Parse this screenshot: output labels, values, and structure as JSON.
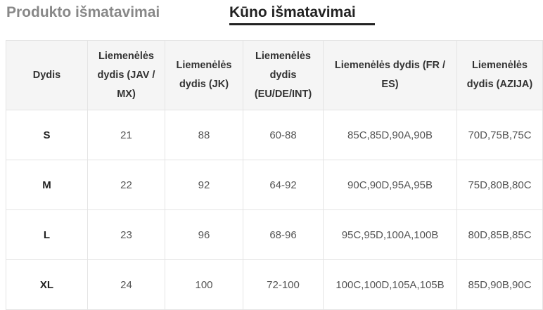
{
  "tabs": {
    "product": "Produkto išmatavimai",
    "body": "Kūno išmatavimai"
  },
  "table": {
    "headers": [
      "Dydis",
      "Liemenėlės dydis (JAV / MX)",
      "Liemenėlės dydis (JK)",
      "Liemenėlės dydis (EU/DE/INT)",
      "Liemenėlės dydis (FR / ES)",
      "Liemenėlės dydis (AZIJA)"
    ],
    "rows": [
      [
        "S",
        "21",
        "88",
        "60-88",
        "85C,85D,90A,90B",
        "70D,75B,75C"
      ],
      [
        "M",
        "22",
        "92",
        "64-92",
        "90C,90D,95A,95B",
        "75D,80B,80C"
      ],
      [
        "L",
        "23",
        "96",
        "68-96",
        "95C,95D,100A,100B",
        "80D,85B,85C"
      ],
      [
        "XL",
        "24",
        "100",
        "72-100",
        "100C,100D,105A,105B",
        "85D,90B,90C"
      ]
    ]
  }
}
